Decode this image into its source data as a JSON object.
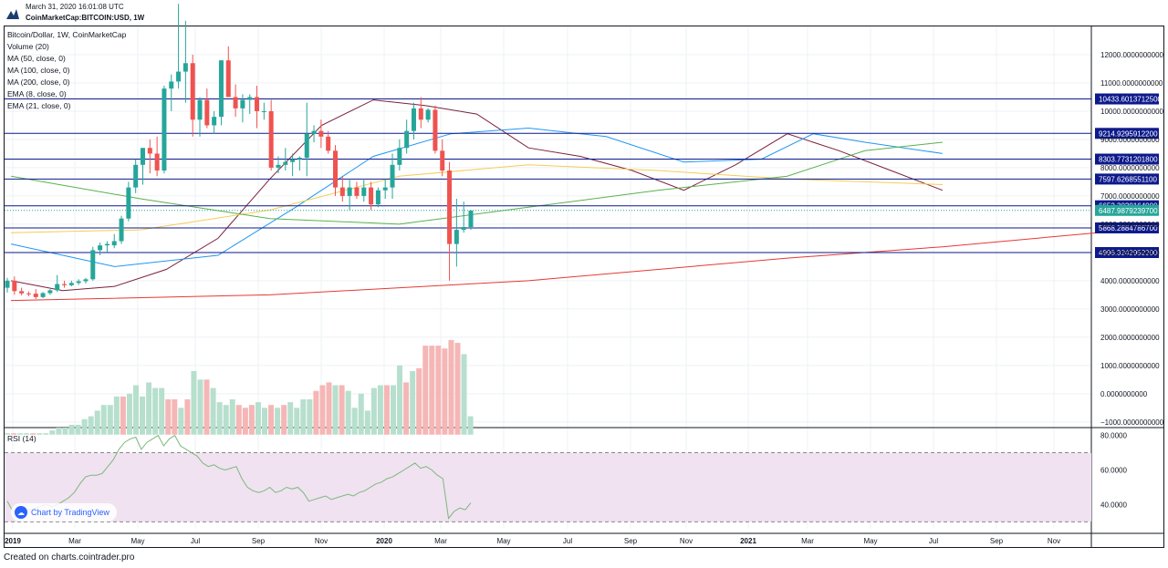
{
  "header": {
    "date": "March 31, 2020 16:01:08 UTC",
    "symbol": "CoinMarketCap:BITCOIN:USD, 1W"
  },
  "legend": {
    "title": "Bitcoin/Dollar, 1W, CoinMarketCap",
    "items": [
      "Volume (20)",
      "MA (50, close, 0)",
      "MA (100, close, 0)",
      "MA (200, close, 0)",
      "EMA (8, close, 0)",
      "EMA (21, close, 0)"
    ]
  },
  "rsi": {
    "label": "RSI (14)"
  },
  "badge": {
    "text": "Chart by TradingView"
  },
  "footer": {
    "text": "Created on charts.cointrader.pro"
  },
  "colors": {
    "up": "#26a69a",
    "down": "#ef5350",
    "vol_up": "#b7dfcd",
    "vol_down": "#f5b6b6",
    "hline": "#0d1a8c",
    "ema8": "#7b1f3a",
    "ema21": "#2196f3",
    "ma50": "#f5cc55",
    "ma100": "#5ab04c",
    "ma200": "#e53935",
    "rsi": "#7cb87a",
    "rsi_band": "#f0e2f1",
    "last_price": "#26a69a"
  },
  "chart_data": [
    {
      "type": "candlestick",
      "title": "Bitcoin/Dollar, 1W, CoinMarketCap",
      "x_tick_labels": [
        "2019",
        "Mar",
        "May",
        "Jul",
        "Sep",
        "Nov",
        "2020",
        "Mar",
        "May",
        "Jul",
        "Sep",
        "Nov",
        "2021",
        "Mar",
        "May",
        "Jul",
        "Sep",
        "Nov"
      ],
      "y_tick_labels": [
        "12000.0000000000",
        "11000.0000000000",
        "10000.0000000000",
        "9000.0000000000",
        "8000.0000000000",
        "7000.0000000000",
        "6000.0000000000",
        "5000.0000000000",
        "4000.0000000000",
        "3000.0000000000",
        "2000.0000000000",
        "1000.0000000000",
        "0.0000000000",
        "−1000.0000000000"
      ],
      "y_ticks": [
        12000,
        11000,
        10000,
        9000,
        8000,
        7000,
        6000,
        5000,
        4000,
        3000,
        2000,
        1000,
        0,
        -1000
      ],
      "ylim": [
        -1200,
        13000
      ],
      "weeks": 84,
      "ohlc": [
        [
          3750,
          4100,
          3580,
          4000
        ],
        [
          4000,
          4150,
          3500,
          3630
        ],
        [
          3630,
          3750,
          3480,
          3550
        ],
        [
          3550,
          3620,
          3450,
          3540
        ],
        [
          3540,
          3700,
          3350,
          3420
        ],
        [
          3420,
          3600,
          3380,
          3560
        ],
        [
          3560,
          3700,
          3500,
          3660
        ],
        [
          3660,
          4200,
          3600,
          3880
        ],
        [
          3880,
          4000,
          3750,
          3840
        ],
        [
          3840,
          4000,
          3800,
          3920
        ],
        [
          3920,
          4050,
          3850,
          3980
        ],
        [
          3980,
          4100,
          3900,
          4050
        ],
        [
          4050,
          5200,
          4000,
          5080
        ],
        [
          5080,
          5350,
          4900,
          5250
        ],
        [
          5250,
          5400,
          5000,
          5300
        ],
        [
          5250,
          5650,
          5150,
          5400
        ],
        [
          5400,
          6300,
          5300,
          6200
        ],
        [
          6200,
          7500,
          6100,
          7300
        ],
        [
          7300,
          8300,
          7100,
          8100
        ],
        [
          8100,
          8700,
          7400,
          8700
        ],
        [
          8700,
          9000,
          7800,
          8500
        ],
        [
          8500,
          9100,
          7700,
          7900
        ],
        [
          7900,
          10900,
          7800,
          10800
        ],
        [
          10800,
          11300,
          10000,
          11050
        ],
        [
          11050,
          13800,
          10800,
          11400
        ],
        [
          11400,
          13200,
          10300,
          11700
        ],
        [
          11700,
          12000,
          9100,
          9700
        ],
        [
          9700,
          10500,
          9100,
          10400
        ],
        [
          10400,
          10800,
          9400,
          9500
        ],
        [
          9500,
          10000,
          9200,
          9800
        ],
        [
          9800,
          11800,
          9500,
          11800
        ],
        [
          11800,
          12300,
          10500,
          10500
        ],
        [
          10500,
          10950,
          9800,
          10100
        ],
        [
          10100,
          10600,
          9600,
          10400
        ],
        [
          10400,
          10600,
          9900,
          10500
        ],
        [
          10500,
          10900,
          9400,
          10000
        ],
        [
          10000,
          10300,
          9700,
          10000
        ],
        [
          10000,
          10400,
          7900,
          8000
        ],
        [
          8000,
          8400,
          7800,
          8100
        ],
        [
          8100,
          8700,
          7900,
          8200
        ],
        [
          8200,
          8500,
          7700,
          8300
        ],
        [
          8300,
          8400,
          7900,
          8350
        ],
        [
          8350,
          10300,
          7700,
          9200
        ],
        [
          9200,
          9500,
          8900,
          9300
        ],
        [
          9300,
          9700,
          8700,
          9100
        ],
        [
          9100,
          9300,
          8500,
          8600
        ],
        [
          8600,
          8800,
          7000,
          7300
        ],
        [
          7300,
          7700,
          6800,
          7000
        ],
        [
          7000,
          7600,
          6500,
          7300
        ],
        [
          7300,
          7500,
          6900,
          7000
        ],
        [
          7000,
          7600,
          6800,
          7300
        ],
        [
          7300,
          7500,
          6500,
          6700
        ],
        [
          6700,
          7300,
          6600,
          7200
        ],
        [
          7200,
          7600,
          6900,
          7300
        ],
        [
          7300,
          8500,
          6900,
          8100
        ],
        [
          8100,
          9000,
          7900,
          8700
        ],
        [
          8700,
          9700,
          8500,
          9300
        ],
        [
          9300,
          10300,
          9000,
          10100
        ],
        [
          10100,
          10500,
          9400,
          9700
        ],
        [
          9700,
          10100,
          9600,
          10050
        ],
        [
          10050,
          10200,
          8500,
          8600
        ],
        [
          8600,
          9000,
          7700,
          7900
        ],
        [
          7900,
          8200,
          4000,
          5300
        ],
        [
          5300,
          6900,
          4500,
          5800
        ],
        [
          5800,
          6800,
          5700,
          5900
        ],
        [
          5900,
          6500,
          5800,
          6480
        ]
      ],
      "volume_bars": [
        {
          "value": -1400,
          "up": true
        },
        {
          "value": -1400,
          "up": false
        },
        {
          "value": -1400,
          "up": true
        },
        {
          "value": -1400,
          "up": true
        },
        {
          "value": -1400,
          "up": false
        },
        {
          "value": -1400,
          "up": true
        },
        {
          "value": -1400,
          "up": true
        },
        {
          "value": -1300,
          "up": true
        },
        {
          "value": -1200,
          "up": true
        },
        {
          "value": -1200,
          "up": true
        },
        {
          "value": -1100,
          "up": true
        },
        {
          "value": -1100,
          "up": true
        },
        {
          "value": -900,
          "up": true
        },
        {
          "value": -800,
          "up": true
        },
        {
          "value": -600,
          "up": true
        },
        {
          "value": -400,
          "up": true
        },
        {
          "value": -400,
          "up": true
        },
        {
          "value": -100,
          "up": true
        },
        {
          "value": -100,
          "up": false
        },
        {
          "value": 0,
          "up": true
        },
        {
          "value": 300,
          "up": true
        },
        {
          "value": -100,
          "up": true
        },
        {
          "value": 400,
          "up": true
        },
        {
          "value": 200,
          "up": true
        },
        {
          "value": 200,
          "up": true
        },
        {
          "value": -200,
          "up": false
        },
        {
          "value": -200,
          "up": false
        },
        {
          "value": -500,
          "up": true
        },
        {
          "value": -200,
          "up": false
        },
        {
          "value": 800,
          "up": true
        },
        {
          "value": 500,
          "up": true
        },
        {
          "value": 500,
          "up": false
        },
        {
          "value": 200,
          "up": true
        },
        {
          "value": -300,
          "up": true
        },
        {
          "value": -400,
          "up": true
        },
        {
          "value": -200,
          "up": true
        },
        {
          "value": -400,
          "up": false
        },
        {
          "value": -500,
          "up": false
        },
        {
          "value": -400,
          "up": false
        },
        {
          "value": -300,
          "up": true
        },
        {
          "value": -500,
          "up": true
        },
        {
          "value": -400,
          "up": false
        },
        {
          "value": -500,
          "up": true
        },
        {
          "value": -400,
          "up": false
        },
        {
          "value": -300,
          "up": true
        },
        {
          "value": -500,
          "up": true
        },
        {
          "value": -200,
          "up": true
        },
        {
          "value": -200,
          "up": true
        },
        {
          "value": 100,
          "up": false
        },
        {
          "value": 300,
          "up": false
        },
        {
          "value": 400,
          "up": false
        },
        {
          "value": 300,
          "up": true
        },
        {
          "value": 300,
          "up": false
        },
        {
          "value": 100,
          "up": true
        },
        {
          "value": -500,
          "up": true
        },
        {
          "value": 0,
          "up": true
        },
        {
          "value": -600,
          "up": true
        },
        {
          "value": 200,
          "up": true
        },
        {
          "value": 300,
          "up": true
        },
        {
          "value": 300,
          "up": false
        },
        {
          "value": 300,
          "up": true
        },
        {
          "value": 1000,
          "up": true
        },
        {
          "value": 400,
          "up": false
        },
        {
          "value": 800,
          "up": true
        },
        {
          "value": 900,
          "up": false
        },
        {
          "value": 1700,
          "up": false
        },
        {
          "value": 1700,
          "up": false
        },
        {
          "value": 1700,
          "up": false
        },
        {
          "value": 1600,
          "up": false
        },
        {
          "value": 1900,
          "up": false
        },
        {
          "value": 1800,
          "up": false
        },
        {
          "value": 1400,
          "up": true
        },
        {
          "value": -800,
          "up": true
        }
      ],
      "horizontal_levels": [
        {
          "value": 10433.60137125,
          "label": "10433.6013712500"
        },
        {
          "value": 9214.92959122,
          "label": "9214.9295912200"
        },
        {
          "value": 8303.77312018,
          "label": "8303.7731201800"
        },
        {
          "value": 7597.62685511,
          "label": "7597.6268551100"
        },
        {
          "value": 6652.3020164,
          "label": "6652.3020164000"
        },
        {
          "value": 5868.28847867,
          "label": "5868.2884786700"
        },
        {
          "value": 4996.32429522,
          "label": "4996.3242952200"
        }
      ],
      "last_price": {
        "value": 6487.98792397,
        "label": "6487.9879239700"
      },
      "moving_averages": [
        {
          "name": "EMA (8, close, 0)",
          "values": [
            [
              0,
              4000
            ],
            [
              4,
              3650
            ],
            [
              8,
              3800
            ],
            [
              12,
              4400
            ],
            [
              16,
              5500
            ],
            [
              20,
              7600
            ],
            [
              24,
              9500
            ],
            [
              28,
              10400
            ],
            [
              32,
              10200
            ],
            [
              36,
              9900
            ],
            [
              40,
              8700
            ],
            [
              44,
              8400
            ],
            [
              48,
              7900
            ],
            [
              52,
              7200
            ],
            [
              56,
              8100
            ],
            [
              60,
              9200
            ],
            [
              64,
              8600
            ],
            [
              68,
              7900
            ],
            [
              72,
              7200
            ]
          ]
        },
        {
          "name": "EMA (21, close, 0)",
          "values": [
            [
              0,
              5300
            ],
            [
              8,
              4500
            ],
            [
              16,
              4900
            ],
            [
              22,
              6600
            ],
            [
              28,
              8400
            ],
            [
              34,
              9200
            ],
            [
              40,
              9400
            ],
            [
              46,
              9100
            ],
            [
              52,
              8200
            ],
            [
              58,
              8300
            ],
            [
              62,
              9200
            ],
            [
              66,
              8900
            ],
            [
              72,
              8500
            ]
          ]
        },
        {
          "name": "MA (50, close, 0)",
          "values": [
            [
              0,
              5700
            ],
            [
              10,
              5800
            ],
            [
              20,
              6500
            ],
            [
              30,
              7700
            ],
            [
              40,
              8100
            ],
            [
              50,
              7900
            ],
            [
              60,
              7600
            ],
            [
              66,
              7500
            ],
            [
              72,
              7400
            ]
          ]
        },
        {
          "name": "MA (100, close, 0)",
          "values": [
            [
              0,
              7700
            ],
            [
              10,
              6900
            ],
            [
              20,
              6200
            ],
            [
              30,
              6000
            ],
            [
              40,
              6600
            ],
            [
              50,
              7200
            ],
            [
              60,
              7700
            ],
            [
              66,
              8600
            ],
            [
              72,
              8900
            ]
          ]
        },
        {
          "name": "MA (200, close, 0)",
          "values": [
            [
              0,
              3300
            ],
            [
              20,
              3500
            ],
            [
              40,
              4000
            ],
            [
              60,
              4800
            ],
            [
              72,
              5200
            ],
            [
              84,
              5700
            ]
          ]
        }
      ]
    },
    {
      "type": "line",
      "title": "RSI (14)",
      "y_tick_labels": [
        "80.0000",
        "60.0000",
        "40.0000"
      ],
      "y_ticks": [
        80,
        60,
        40
      ],
      "ylim": [
        26,
        84
      ],
      "band": [
        30,
        70
      ],
      "values": [
        42,
        36,
        37,
        38,
        37,
        38,
        39,
        40,
        39,
        40,
        42,
        44,
        47,
        52,
        56,
        57,
        57,
        58,
        62,
        66,
        72,
        76,
        78,
        79,
        72,
        76,
        78,
        80,
        74,
        78,
        80,
        74,
        72,
        70,
        68,
        64,
        62,
        63,
        61,
        60,
        61,
        62,
        55,
        50,
        48,
        47,
        48,
        50,
        47,
        48,
        50,
        49,
        50,
        47,
        42,
        43,
        44,
        45,
        43,
        44,
        45,
        46,
        45,
        47,
        48,
        50,
        52,
        53,
        55,
        56,
        58,
        60,
        62,
        64,
        61,
        62,
        60,
        57,
        55,
        32,
        36,
        38,
        37,
        41
      ]
    }
  ]
}
